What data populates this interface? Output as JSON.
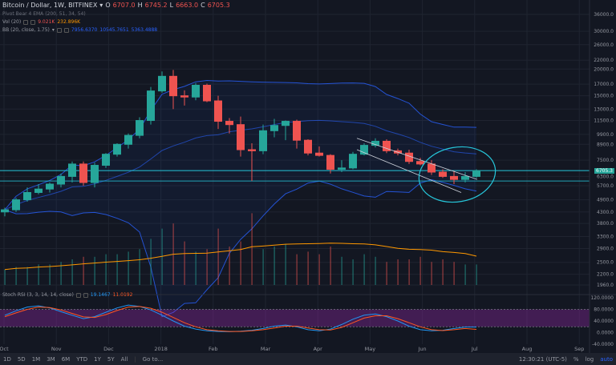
{
  "header": {
    "symbol": "Bitcoin / Dollar, 1W, BITFINEX",
    "o_label": "O",
    "o": "6707.0",
    "h_label": "H",
    "h": "6745.2",
    "l_label": "L",
    "l": "6663.0",
    "c_label": "C",
    "c": "6705.3"
  },
  "indicators": {
    "pivot": "Pivot Bear 4 EMA (200, 51, 34, 54)",
    "vol_label": "Vol (20)",
    "vol_v1": "9.021K",
    "vol_v2": "232.896K",
    "bb_label": "BB (20, close, 1.75)",
    "bb_v1": "7956.6370",
    "bb_v2": "10545.7651",
    "bb_v3": "5363.4888",
    "stoch_label": "Stoch RSI (3, 3, 14, 14, close)",
    "stoch_k": "19.1467",
    "stoch_d": "11.0192"
  },
  "price_axis": [
    "36000.0",
    "30000.0",
    "26000.0",
    "22000.0",
    "20000.0",
    "17000.0",
    "15000.0",
    "13000.0",
    "11500.0",
    "9900.0",
    "8900.0",
    "7500.0",
    "6705.3",
    "6300.0",
    "5700.0",
    "4900.0",
    "4300.0",
    "3800.0",
    "3300.0",
    "2900.0",
    "2500.0",
    "2200.0",
    "1960.0"
  ],
  "last_price": "6705.3",
  "stoch_axis": [
    "120.0000",
    "80.0000",
    "40.0000",
    "0.0000",
    "-40.0000"
  ],
  "time_axis": [
    "Oct",
    "Nov",
    "Dec",
    "2018",
    "Feb",
    "Mar",
    "Apr",
    "May",
    "Jun",
    "Jul",
    "Aug",
    "Sep"
  ],
  "bottom": {
    "periods": [
      "1D",
      "5D",
      "1M",
      "3M",
      "6M",
      "YTD",
      "1Y",
      "5Y",
      "All"
    ],
    "goto": "Go to...",
    "clock": "12:30:21 (UTC-5)",
    "pct": "%",
    "log": "log",
    "auto": "auto"
  },
  "colors": {
    "up": "#26a69a",
    "down": "#ef5350",
    "bb": "#2962ff",
    "vol_ma": "#ff9800",
    "stoch_k": "#2196f3",
    "stoch_d": "#ff5722",
    "band": "#9c27b0",
    "accent": "#26c6da"
  },
  "chart_data": {
    "type": "candlestick",
    "candles": [
      {
        "o": 4300,
        "h": 4500,
        "l": 4100,
        "c": 4400
      },
      {
        "o": 4400,
        "h": 5000,
        "l": 4300,
        "c": 4900
      },
      {
        "o": 4900,
        "h": 5600,
        "l": 4800,
        "c": 5300
      },
      {
        "o": 5300,
        "h": 5800,
        "l": 5200,
        "c": 5500
      },
      {
        "o": 5500,
        "h": 5900,
        "l": 5300,
        "c": 5800
      },
      {
        "o": 5800,
        "h": 6500,
        "l": 5600,
        "c": 6300
      },
      {
        "o": 6300,
        "h": 7400,
        "l": 5900,
        "c": 7200
      },
      {
        "o": 7200,
        "h": 7400,
        "l": 5700,
        "c": 5900
      },
      {
        "o": 5900,
        "h": 7300,
        "l": 5600,
        "c": 7100
      },
      {
        "o": 7100,
        "h": 8100,
        "l": 6900,
        "c": 8000
      },
      {
        "o": 8000,
        "h": 9000,
        "l": 7800,
        "c": 8900
      },
      {
        "o": 8900,
        "h": 10000,
        "l": 8500,
        "c": 9800
      },
      {
        "o": 9800,
        "h": 11900,
        "l": 9500,
        "c": 11500
      },
      {
        "o": 11500,
        "h": 16500,
        "l": 11000,
        "c": 15800
      },
      {
        "o": 15800,
        "h": 19500,
        "l": 15500,
        "c": 18500
      },
      {
        "o": 18500,
        "h": 19800,
        "l": 13000,
        "c": 15000
      },
      {
        "o": 15000,
        "h": 15900,
        "l": 13500,
        "c": 14800
      },
      {
        "o": 14800,
        "h": 17200,
        "l": 14300,
        "c": 16800
      },
      {
        "o": 16800,
        "h": 17100,
        "l": 14000,
        "c": 14200
      },
      {
        "o": 14200,
        "h": 15000,
        "l": 10500,
        "c": 11400
      },
      {
        "o": 11400,
        "h": 11800,
        "l": 10000,
        "c": 11000
      },
      {
        "o": 11000,
        "h": 12000,
        "l": 7800,
        "c": 8400
      },
      {
        "o": 8400,
        "h": 9000,
        "l": 6000,
        "c": 8300
      },
      {
        "o": 8300,
        "h": 11000,
        "l": 8000,
        "c": 10300
      },
      {
        "o": 10300,
        "h": 11700,
        "l": 9600,
        "c": 10900
      },
      {
        "o": 10900,
        "h": 11500,
        "l": 9300,
        "c": 11400
      },
      {
        "o": 11400,
        "h": 11600,
        "l": 8500,
        "c": 9300
      },
      {
        "o": 9300,
        "h": 9400,
        "l": 7900,
        "c": 8100
      },
      {
        "o": 8100,
        "h": 8700,
        "l": 7800,
        "c": 7900
      },
      {
        "o": 7900,
        "h": 8000,
        "l": 6500,
        "c": 6800
      },
      {
        "o": 6800,
        "h": 7500,
        "l": 6600,
        "c": 6900
      },
      {
        "o": 6900,
        "h": 8200,
        "l": 6800,
        "c": 8000
      },
      {
        "o": 8000,
        "h": 9000,
        "l": 7900,
        "c": 8800
      },
      {
        "o": 8800,
        "h": 9500,
        "l": 8600,
        "c": 9200
      },
      {
        "o": 9200,
        "h": 9400,
        "l": 8100,
        "c": 8300
      },
      {
        "o": 8300,
        "h": 8500,
        "l": 7900,
        "c": 8100
      },
      {
        "o": 8100,
        "h": 8400,
        "l": 7200,
        "c": 7400
      },
      {
        "o": 7400,
        "h": 7700,
        "l": 7100,
        "c": 7200
      },
      {
        "o": 7200,
        "h": 7500,
        "l": 6400,
        "c": 6600
      },
      {
        "o": 6600,
        "h": 6800,
        "l": 6200,
        "c": 6300
      },
      {
        "o": 6300,
        "h": 6700,
        "l": 5800,
        "c": 6100
      },
      {
        "o": 6100,
        "h": 6600,
        "l": 5900,
        "c": 6300
      },
      {
        "o": 6300,
        "h": 6800,
        "l": 6200,
        "c": 6700
      }
    ],
    "volumes": [
      6,
      7,
      7,
      8,
      8,
      9,
      10,
      11,
      11,
      12,
      12,
      13,
      14,
      18,
      22,
      24,
      17,
      13,
      14,
      22,
      15,
      17,
      28,
      14,
      15,
      16,
      12,
      13,
      12,
      15,
      11,
      10,
      12,
      11,
      9,
      10,
      10,
      11,
      9,
      10,
      9,
      8,
      8
    ]
  }
}
